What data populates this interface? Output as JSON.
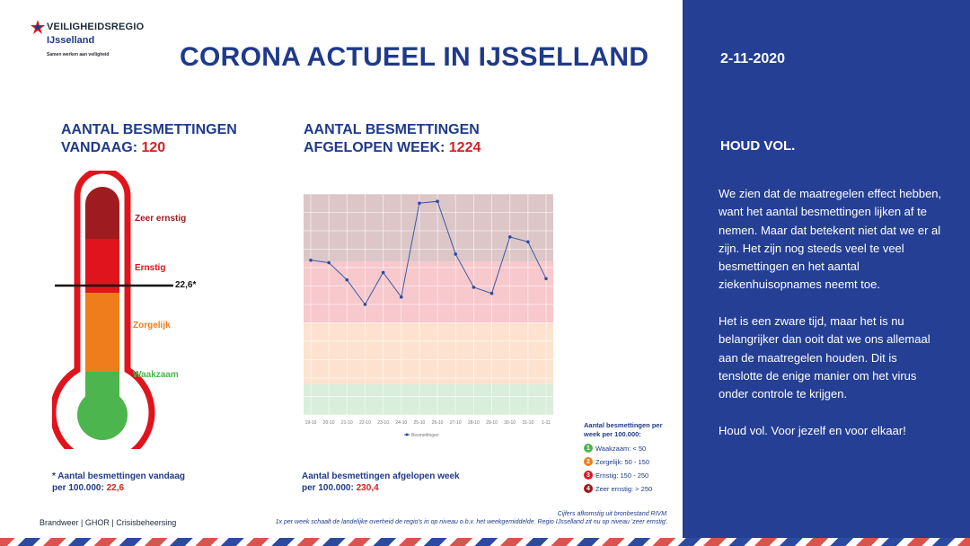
{
  "logo": {
    "name": "VEILIGHEIDSREGIO",
    "region": "IJsselland",
    "tagline": "Samen werken aan veiligheid"
  },
  "title": "CORONA ACTUEEL IN IJSSELLAND",
  "panel": {
    "date": "2-11-2020",
    "heading": "HOUD VOL.",
    "paragraphs": [
      "We zien dat de maatregelen effect hebben, want het aantal besmettingen lijken af te nemen. Maar dat betekent niet dat we er al zijn. Het zijn nog steeds veel te veel besmettingen en het aantal ziekenhuisopnames neemt toe.",
      "Het is een zware tijd, maar het is nu belangrijker dan ooit dat we ons allemaal aan de maatregelen houden. Dit is tenslotte de enige manier om het virus onder controle te krijgen.",
      "Houd vol. Voor jezelf en voor elkaar!"
    ]
  },
  "today": {
    "heading_line1": "AANTAL BESMETTINGEN",
    "heading_line2": "VANDAAG: ",
    "count": "120",
    "marker_value": "22,6*",
    "footnote_line1": "* Aantal besmettingen vandaag",
    "footnote_line2": "per 100.000: ",
    "footnote_value": "22,6",
    "bands": [
      {
        "label": "Zeer ernstig",
        "color": "#9e1b1f"
      },
      {
        "label": "Ernstig",
        "color": "#e0141c"
      },
      {
        "label": "Zorgelijk",
        "color": "#f07d1b"
      },
      {
        "label": "Waakzaam",
        "color": "#4cb54d"
      }
    ]
  },
  "week": {
    "heading_line1": "AANTAL BESMETTINGEN",
    "heading_line2": "AFGELOPEN WEEK: ",
    "count": "1224",
    "footnote_line1": "Aantal besmettingen afgelopen week",
    "footnote_line2": "per 100.000: ",
    "footnote_value": "230,4"
  },
  "chart_data": {
    "type": "line",
    "categories": [
      "19-10",
      "20-10",
      "21-10",
      "22-10",
      "23-10",
      "24-10",
      "25-10",
      "26-10",
      "27-10",
      "28-10",
      "29-10",
      "30-10",
      "31-10",
      "1-11"
    ],
    "series": [
      {
        "name": "Besmettingen",
        "values": [
          252,
          248,
          220,
          180,
          232,
          192,
          345,
          348,
          262,
          208,
          198,
          290,
          282,
          222
        ]
      }
    ],
    "ylim": [
      0,
      360
    ],
    "bands": [
      {
        "from": 0,
        "to": 50,
        "color": "#d9eedb"
      },
      {
        "from": 50,
        "to": 150,
        "color": "#fde3cf"
      },
      {
        "from": 150,
        "to": 250,
        "color": "#f7c8cc"
      },
      {
        "from": 250,
        "to": 360,
        "color": "#dcc6c8"
      }
    ],
    "grid": true,
    "legend": "bottom"
  },
  "legend": {
    "title": "Aantal besmettingen per week per 100.000:",
    "items": [
      {
        "num": "1",
        "label": "Waakzaam: < 50",
        "color": "#4cb54d"
      },
      {
        "num": "2",
        "label": "Zorgelijk: 50 - 150",
        "color": "#f07d1b"
      },
      {
        "num": "3",
        "label": "Ernstig: 150 - 250",
        "color": "#e0141c"
      },
      {
        "num": "4",
        "label": "Zeer ernstig: > 250",
        "color": "#9e1b1f"
      }
    ]
  },
  "footer": {
    "left": "Brandweer | GHOR | Crisisbeheersing",
    "right_line1": "Cijfers afkomstig uit bronbestand RIVM.",
    "right_line2": "1x per week schaalt de landelijke overheid de regio's in op niveau o.b.v. het weekgemiddelde. Regio IJsselland zit nu op niveau 'zeer ernstig'."
  }
}
